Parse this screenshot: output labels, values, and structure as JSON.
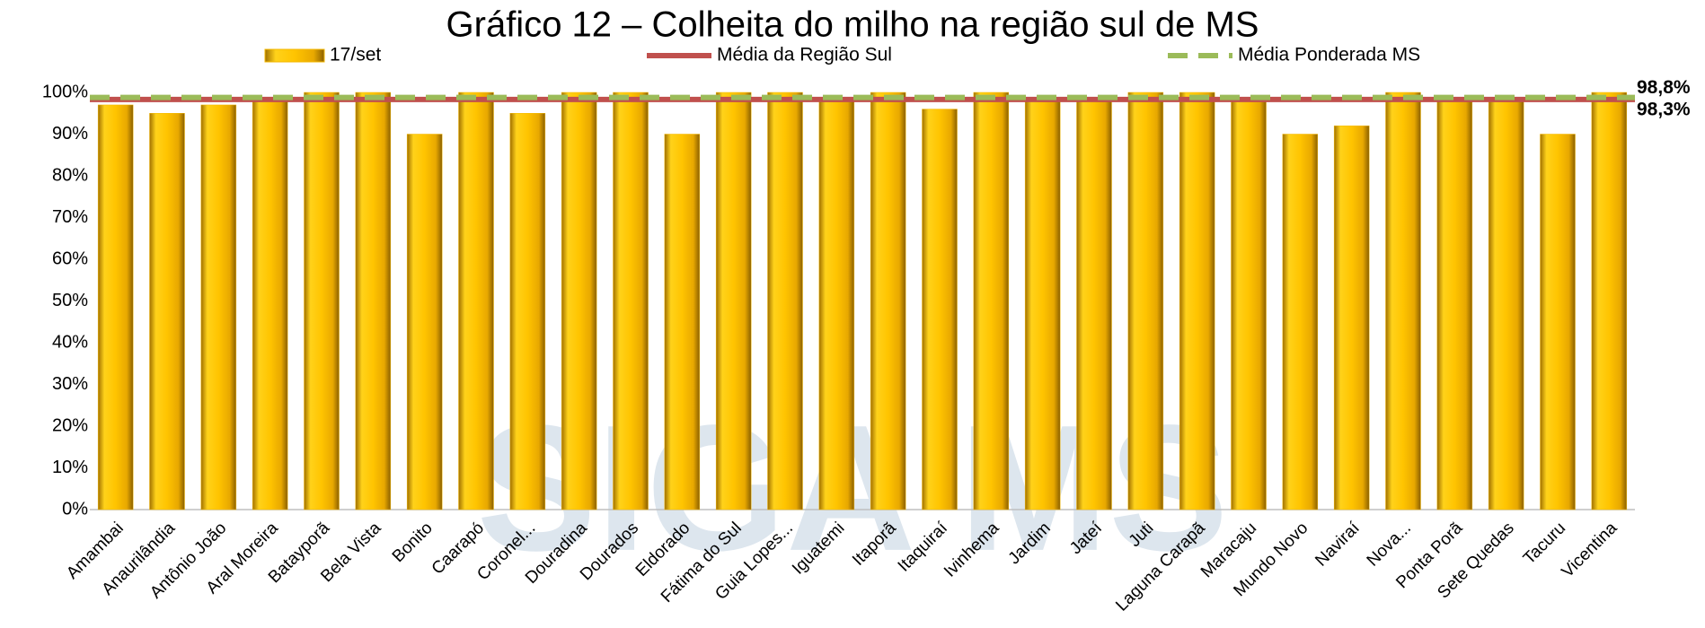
{
  "chart_data": {
    "type": "bar",
    "title": "Gráfico 12 – Colheita do milho na região sul de MS",
    "watermark": "SIGA MS",
    "categories": [
      "Amambai",
      "Anaurilândia",
      "Antônio João",
      "Aral Moreira",
      "Batayporã",
      "Bela Vista",
      "Bonito",
      "Caarapó",
      "Coronel...",
      "Douradina",
      "Dourados",
      "Eldorado",
      "Fátima do Sul",
      "Guia Lopes...",
      "Iguatemi",
      "Itaporã",
      "Itaquiraí",
      "Ivinhema",
      "Jardim",
      "Jateí",
      "Juti",
      "Laguna Carapã",
      "Maracaju",
      "Mundo Novo",
      "Naviraí",
      "Nova...",
      "Ponta Porã",
      "Sete Quedas",
      "Tacuru",
      "Vicentina"
    ],
    "series": [
      {
        "name": "17/set",
        "color": "#f5b800",
        "values": [
          97,
          95,
          97,
          98,
          100,
          100,
          90,
          100,
          95,
          100,
          100,
          90,
          100,
          100,
          98,
          100,
          96,
          100,
          98,
          98,
          100,
          100,
          98,
          90,
          92,
          100,
          98,
          98,
          90,
          100
        ]
      }
    ],
    "lines": [
      {
        "name": "Média da Região Sul",
        "color": "#c0504d",
        "dash": false,
        "value": 98.3,
        "value_label": "98,3%"
      },
      {
        "name": "Média Ponderada MS",
        "color": "#9bbb59",
        "dash": true,
        "value": 98.8,
        "value_label": "98,8%"
      }
    ],
    "ylim": [
      0,
      100
    ],
    "yticks": [
      {
        "value": 0,
        "label": "0%"
      },
      {
        "value": 10,
        "label": "10%"
      },
      {
        "value": 20,
        "label": "20%"
      },
      {
        "value": 30,
        "label": "30%"
      },
      {
        "value": 40,
        "label": "40%"
      },
      {
        "value": 50,
        "label": "50%"
      },
      {
        "value": 60,
        "label": "60%"
      },
      {
        "value": 70,
        "label": "70%"
      },
      {
        "value": 80,
        "label": "80%"
      },
      {
        "value": 90,
        "label": "90%"
      },
      {
        "value": 100,
        "label": "100%"
      }
    ],
    "grid": false
  }
}
